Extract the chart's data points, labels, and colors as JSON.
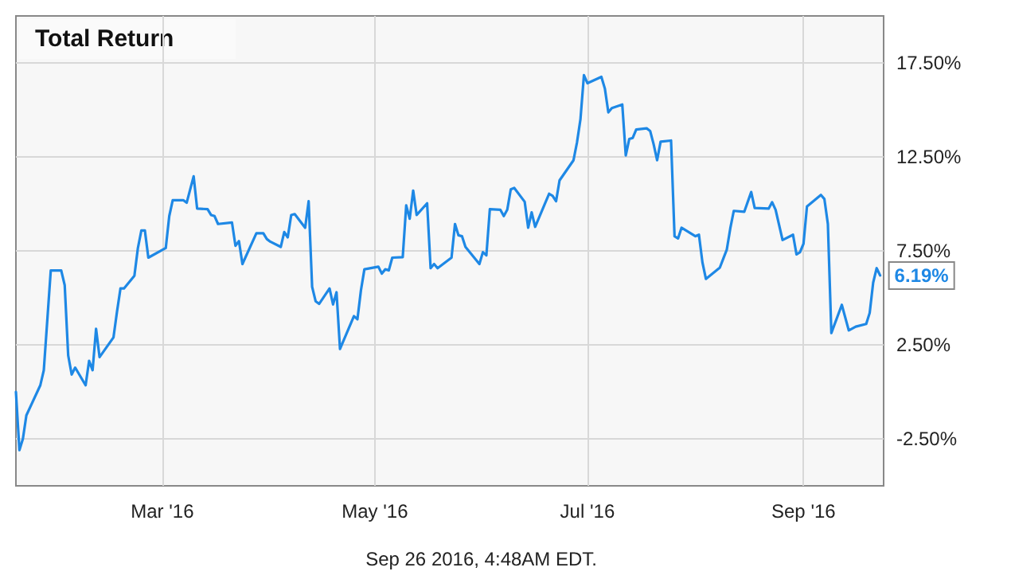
{
  "chart_data": {
    "type": "line",
    "title": "Total Return",
    "x": [
      "2016-01-19",
      "2016-01-20",
      "2016-01-21",
      "2016-01-22",
      "2016-01-26",
      "2016-01-27",
      "2016-01-29",
      "2016-02-01",
      "2016-02-02",
      "2016-02-03",
      "2016-02-04",
      "2016-02-05",
      "2016-02-08",
      "2016-02-09",
      "2016-02-10",
      "2016-02-11",
      "2016-02-12",
      "2016-02-16",
      "2016-02-17",
      "2016-02-18",
      "2016-02-19",
      "2016-02-22",
      "2016-02-23",
      "2016-02-24",
      "2016-02-25",
      "2016-02-26",
      "2016-03-02",
      "2016-03-03",
      "2016-03-04",
      "2016-03-07",
      "2016-03-08",
      "2016-03-10",
      "2016-03-11",
      "2016-03-14",
      "2016-03-15",
      "2016-03-16",
      "2016-03-17",
      "2016-03-21",
      "2016-03-22",
      "2016-03-23",
      "2016-03-24",
      "2016-03-28",
      "2016-03-30",
      "2016-03-31",
      "2016-04-01",
      "2016-04-04",
      "2016-04-05",
      "2016-04-06",
      "2016-04-07",
      "2016-04-08",
      "2016-04-11",
      "2016-04-12",
      "2016-04-13",
      "2016-04-14",
      "2016-04-15",
      "2016-04-18",
      "2016-04-19",
      "2016-04-20",
      "2016-04-21",
      "2016-04-25",
      "2016-04-26",
      "2016-04-27",
      "2016-04-28",
      "2016-05-02",
      "2016-05-03",
      "2016-05-04",
      "2016-05-05",
      "2016-05-06",
      "2016-05-09",
      "2016-05-10",
      "2016-05-11",
      "2016-05-12",
      "2016-05-13",
      "2016-05-16",
      "2016-05-17",
      "2016-05-18",
      "2016-05-19",
      "2016-05-23",
      "2016-05-24",
      "2016-05-25",
      "2016-05-26",
      "2016-05-27",
      "2016-05-31",
      "2016-06-01",
      "2016-06-02",
      "2016-06-03",
      "2016-06-06",
      "2016-06-07",
      "2016-06-08",
      "2016-06-09",
      "2016-06-10",
      "2016-06-13",
      "2016-06-14",
      "2016-06-15",
      "2016-06-16",
      "2016-06-20",
      "2016-06-21",
      "2016-06-22",
      "2016-06-23",
      "2016-06-27",
      "2016-06-28",
      "2016-06-29",
      "2016-06-30",
      "2016-07-01",
      "2016-07-05",
      "2016-07-06",
      "2016-07-07",
      "2016-07-08",
      "2016-07-11",
      "2016-07-12",
      "2016-07-13",
      "2016-07-14",
      "2016-07-15",
      "2016-07-18",
      "2016-07-19",
      "2016-07-20",
      "2016-07-21",
      "2016-07-22",
      "2016-07-25",
      "2016-07-26",
      "2016-07-27",
      "2016-07-28",
      "2016-08-01",
      "2016-08-02",
      "2016-08-03",
      "2016-08-04",
      "2016-08-08",
      "2016-08-09",
      "2016-08-10",
      "2016-08-11",
      "2016-08-12",
      "2016-08-15",
      "2016-08-17",
      "2016-08-18",
      "2016-08-22",
      "2016-08-23",
      "2016-08-24",
      "2016-08-26",
      "2016-08-29",
      "2016-08-30",
      "2016-08-31",
      "2016-09-01",
      "2016-09-02",
      "2016-09-06",
      "2016-09-07",
      "2016-09-08",
      "2016-09-09",
      "2016-09-12",
      "2016-09-14",
      "2016-09-16",
      "2016-09-19",
      "2016-09-20",
      "2016-09-21",
      "2016-09-22",
      "2016-09-23"
    ],
    "series": [
      {
        "color": "#1e88e5",
        "values": [
          0.0,
          -3.1,
          -2.5,
          -1.25,
          0.35,
          1.15,
          6.46,
          6.46,
          5.67,
          1.94,
          0.92,
          1.29,
          0.35,
          1.65,
          1.15,
          3.35,
          1.85,
          2.9,
          4.26,
          5.5,
          5.5,
          6.18,
          7.65,
          8.59,
          8.59,
          7.14,
          7.65,
          9.35,
          10.2,
          10.2,
          10.06,
          11.47,
          9.75,
          9.72,
          9.41,
          9.35,
          8.93,
          9.01,
          7.77,
          8.02,
          6.8,
          8.44,
          8.44,
          8.13,
          7.99,
          7.71,
          8.5,
          8.22,
          9.41,
          9.46,
          8.73,
          10.14,
          5.59,
          4.82,
          4.68,
          5.5,
          4.65,
          5.3,
          2.28,
          4.03,
          3.86,
          5.39,
          6.52,
          6.66,
          6.29,
          6.52,
          6.46,
          7.14,
          7.17,
          9.92,
          9.21,
          10.71,
          9.41,
          10.03,
          6.58,
          6.8,
          6.58,
          7.14,
          8.93,
          8.33,
          8.28,
          7.71,
          6.8,
          7.43,
          7.26,
          9.72,
          9.69,
          9.35,
          9.69,
          10.77,
          10.85,
          10.11,
          8.73,
          9.55,
          8.78,
          10.54,
          10.43,
          10.14,
          11.25,
          12.32,
          13.26,
          14.5,
          16.85,
          16.42,
          16.76,
          16.14,
          14.87,
          15.1,
          15.29,
          12.58,
          13.45,
          13.51,
          13.96,
          14.02,
          13.88,
          13.17,
          12.32,
          13.31,
          13.37,
          8.28,
          8.16,
          8.73,
          8.28,
          8.36,
          6.89,
          6.01,
          6.61,
          7.09,
          7.57,
          8.7,
          9.63,
          9.58,
          10.63,
          9.78,
          9.75,
          10.09,
          9.69,
          8.08,
          8.36,
          7.31,
          7.43,
          7.88,
          9.86,
          10.48,
          10.26,
          8.93,
          3.13,
          4.63,
          3.27,
          3.47,
          3.61,
          4.2,
          5.81,
          6.58,
          6.19
        ]
      }
    ],
    "xlim": [
      "2016-01-19",
      "2016-09-24"
    ],
    "xticks": [
      {
        "value": "2016-03-01",
        "label": "Mar '16"
      },
      {
        "value": "2016-05-01",
        "label": "May '16"
      },
      {
        "value": "2016-07-01",
        "label": "Jul '16"
      },
      {
        "value": "2016-09-01",
        "label": "Sep '16"
      }
    ],
    "ylim": [
      -5,
      20
    ],
    "yticks": [
      {
        "value": -2.5,
        "label": "-2.50%"
      },
      {
        "value": 2.5,
        "label": "2.50%"
      },
      {
        "value": 7.5,
        "label": "7.50%"
      },
      {
        "value": 12.5,
        "label": "12.50%"
      },
      {
        "value": 17.5,
        "label": "17.50%"
      }
    ],
    "grid": true,
    "marker": "none",
    "line_style": "solid",
    "annotations": [
      {
        "text": "6.19%",
        "x": "2016-09-23",
        "y": 6.19
      },
      "Sep 26 2016, 4:48AM EDT."
    ]
  }
}
